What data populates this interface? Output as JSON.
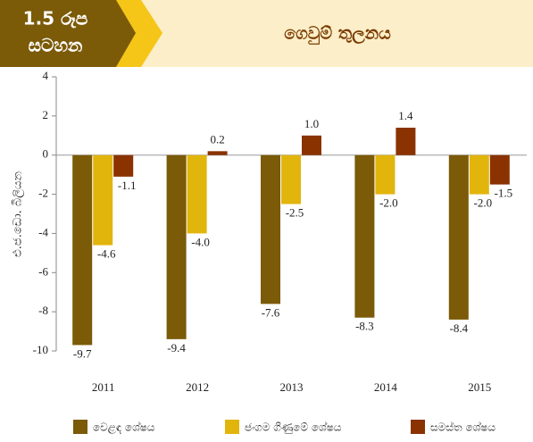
{
  "chart_data": {
    "type": "bar",
    "figure_label_lines": [
      "1.5  රූප",
      "සටහන"
    ],
    "title": "ගෙවුම් තුලනය",
    "y_label": "එ.ජ.ඩො. බිලියන",
    "categories": [
      "2011",
      "2012",
      "2013",
      "2014",
      "2015"
    ],
    "series": [
      {
        "name": "වෙළඳ ශේෂය",
        "color": "#7b5a08",
        "values": [
          -9.7,
          -9.4,
          -7.6,
          -8.3,
          -8.4
        ],
        "value_labels": [
          "-9.7",
          "-9.4",
          "-7.6",
          "-8.3",
          "-8.4"
        ]
      },
      {
        "name": "ජංගම ගිණුමේ ශේෂය",
        "color": "#e2b50c",
        "values": [
          -4.6,
          -4.0,
          -2.5,
          -2.0,
          -2.0
        ],
        "value_labels": [
          "-4.6",
          "-4.0",
          "-2.5",
          "-2.0",
          "-2.0"
        ]
      },
      {
        "name": "සමස්ත ශේෂය",
        "color": "#8a3200",
        "values": [
          -1.1,
          0.2,
          1.0,
          1.4,
          -1.5
        ],
        "value_labels": [
          "-1.1",
          "0.2",
          "1.0",
          "1.4",
          "-1.5"
        ]
      }
    ],
    "ylim": [
      -10,
      4
    ],
    "yticks": [
      -10,
      -8,
      -6,
      -4,
      -2,
      0,
      2,
      4
    ],
    "legend": "bottom"
  }
}
